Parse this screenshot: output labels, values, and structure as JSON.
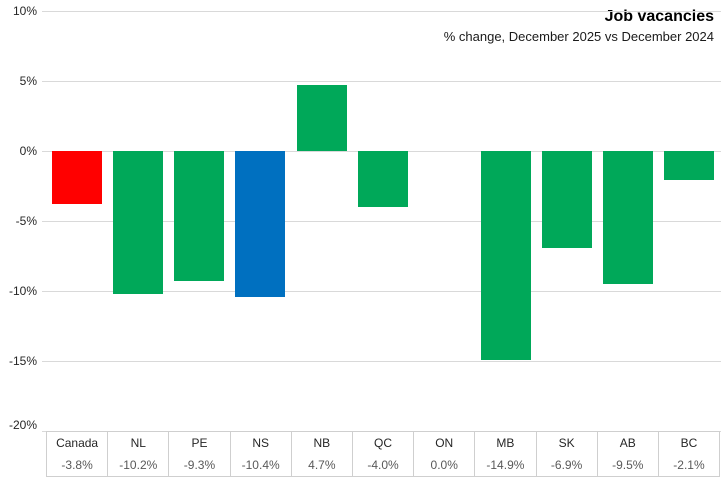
{
  "chart_data": {
    "type": "bar",
    "title": "Job vacancies",
    "subtitle": "% change, December 2025 vs December 2024",
    "categories": [
      "Canada",
      "NL",
      "PE",
      "NS",
      "NB",
      "QC",
      "ON",
      "MB",
      "SK",
      "AB",
      "BC"
    ],
    "values": [
      -3.8,
      -10.2,
      -9.3,
      -10.4,
      4.7,
      -4.0,
      0.0,
      -14.9,
      -6.9,
      -9.5,
      -2.1
    ],
    "value_labels": [
      "-3.8%",
      "-10.2%",
      "-9.3%",
      "-10.4%",
      "4.7%",
      "-4.0%",
      "0.0%",
      "-14.9%",
      "-6.9%",
      "-9.5%",
      "-2.1%"
    ],
    "bar_colors": [
      "#ff0000",
      "#00a859",
      "#00a859",
      "#0070c0",
      "#00a859",
      "#00a859",
      "#00a859",
      "#00a859",
      "#00a859",
      "#00a859",
      "#00a859"
    ],
    "xlabel": "",
    "ylabel": "",
    "ylim": [
      -20,
      10
    ],
    "ytick_step": 5,
    "ytick_labels": [
      "10%",
      "5%",
      "0%",
      "-5%",
      "-10%",
      "-15%",
      "-20%"
    ],
    "grid": true,
    "legend": false,
    "data_table_shown": true
  },
  "colors": {
    "canada_bar": "#ff0000",
    "province_bar": "#00a859",
    "ns_bar": "#0070c0",
    "gridline": "#d9d9d9",
    "table_border": "#cfcfcf",
    "axis_text": "#262626",
    "value_text": "#595959"
  }
}
